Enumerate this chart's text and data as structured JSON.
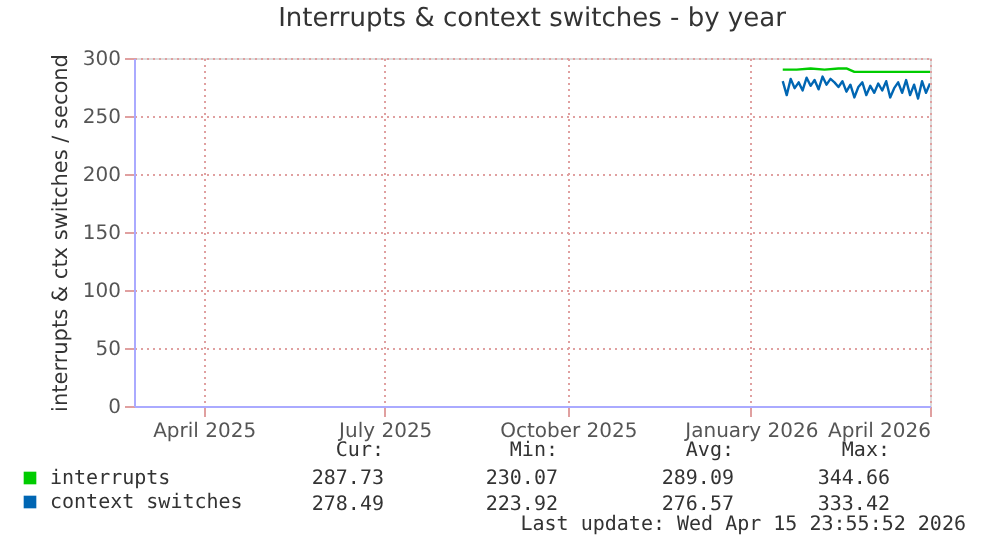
{
  "chart_data": {
    "type": "line",
    "title": "Interrupts & context switches - by year",
    "ylabel": "interrupts & ctx switches / second",
    "xlim": [
      "2025-03-11",
      "2026-04-15"
    ],
    "xticks": [
      {
        "value": "2025-04-15",
        "label": "April 2025"
      },
      {
        "value": "2025-07-15",
        "label": "July 2025"
      },
      {
        "value": "2025-10-15",
        "label": "October 2025"
      },
      {
        "value": "2026-01-15",
        "label": "January 2026"
      },
      {
        "value": "2026-04-15",
        "label": "April 2026"
      }
    ],
    "ylim": [
      0,
      300
    ],
    "yticks": [
      0,
      50,
      100,
      150,
      200,
      250,
      300
    ],
    "grid": true,
    "legend": "bottom",
    "series": [
      {
        "name": "interrupts",
        "color": "#00cc00",
        "x": [
          "2026-01-31",
          "2026-02-07",
          "2026-02-14",
          "2026-02-21",
          "2026-02-28",
          "2026-03-04",
          "2026-03-08",
          "2026-03-15",
          "2026-03-22",
          "2026-03-29",
          "2026-04-05",
          "2026-04-15"
        ],
        "values": [
          290,
          290,
          291,
          290,
          291,
          291,
          288,
          288,
          288,
          288,
          288,
          288
        ]
      },
      {
        "name": "context switches",
        "color": "#0066b3",
        "x": [
          "2026-01-31",
          "2026-02-02",
          "2026-02-04",
          "2026-02-06",
          "2026-02-08",
          "2026-02-10",
          "2026-02-12",
          "2026-02-14",
          "2026-02-16",
          "2026-02-18",
          "2026-02-20",
          "2026-02-22",
          "2026-02-24",
          "2026-02-26",
          "2026-02-28",
          "2026-03-02",
          "2026-03-04",
          "2026-03-06",
          "2026-03-08",
          "2026-03-10",
          "2026-03-12",
          "2026-03-14",
          "2026-03-16",
          "2026-03-18",
          "2026-03-20",
          "2026-03-22",
          "2026-03-24",
          "2026-03-26",
          "2026-03-28",
          "2026-03-30",
          "2026-04-01",
          "2026-04-03",
          "2026-04-05",
          "2026-04-07",
          "2026-04-09",
          "2026-04-11",
          "2026-04-13",
          "2026-04-15"
        ],
        "values": [
          280,
          268,
          282,
          274,
          279,
          272,
          283,
          276,
          281,
          273,
          284,
          277,
          282,
          279,
          275,
          280,
          271,
          277,
          266,
          275,
          279,
          268,
          276,
          270,
          278,
          272,
          280,
          266,
          274,
          279,
          270,
          281,
          268,
          277,
          265,
          280,
          270,
          278
        ]
      }
    ],
    "annotations": [
      "Cur:",
      "Min:",
      "Avg:",
      "Max:",
      "287.73",
      "230.07",
      "289.09",
      "344.66",
      "278.49",
      "223.92",
      "276.57",
      "333.42",
      "Last update: Wed Apr 15 23:55:52 2026"
    ]
  }
}
